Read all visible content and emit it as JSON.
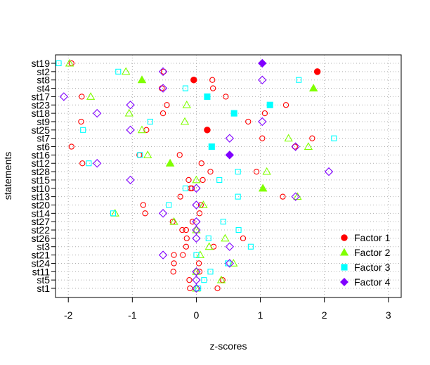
{
  "chart_data": {
    "type": "scatter",
    "xlabel": "z-scores",
    "ylabel": "statements",
    "xlim": [
      -2.2,
      3.2
    ],
    "xticks": [
      -2,
      -1,
      0,
      1,
      2,
      3
    ],
    "grid": true,
    "legend_position": "bottom-right",
    "categories": [
      "st19",
      "st2",
      "st8",
      "st4",
      "st17",
      "st23",
      "st18",
      "st9",
      "st25",
      "st7",
      "st6",
      "st16",
      "st12",
      "st28",
      "st15",
      "st10",
      "st13",
      "st20",
      "st14",
      "st27",
      "st22",
      "st26",
      "st3",
      "st21",
      "st24",
      "st11",
      "st5",
      "st1"
    ],
    "series": [
      {
        "name": "Factor 1",
        "color": "#ff0000",
        "marker": "circle",
        "values": [
          -1.95,
          -0.51,
          0.25,
          -0.54,
          -1.79,
          1.4,
          1.07,
          -1.8,
          0.17,
          1.81,
          -1.95,
          -0.89,
          -1.78,
          0.94,
          -0.12,
          -0.09,
          1.35,
          -0.83,
          -0.8,
          -0.37,
          -0.16,
          0.73,
          0.27,
          -0.35,
          0.04,
          -0.36,
          0.41,
          0.33
        ],
        "alt_values": [
          1.03,
          1.89,
          -0.04,
          0.26,
          0.46,
          -0.46,
          -0.52,
          0.81,
          -0.78,
          1.03,
          1.54,
          -0.26,
          0.08,
          0.22,
          0.1,
          -0.07,
          -0.25,
          0.07,
          0.05,
          -0.06,
          -0.22,
          -0.15,
          -0.16,
          -0.21,
          -0.35,
          0.05,
          -0.11,
          -0.1
        ]
      },
      {
        "name": "Factor 2",
        "color": "#80ff00",
        "marker": "triangle",
        "values": [
          -1.98,
          -1.1,
          -0.85,
          1.83,
          -1.65,
          -0.15,
          -1.05,
          -0.18,
          -0.85,
          1.44,
          1.75,
          -0.76,
          -0.41,
          1.1,
          0.0,
          1.04,
          1.58,
          0.11,
          -1.27,
          -0.35,
          0.0,
          0.45,
          0.2,
          0.06,
          0.58,
          0.0,
          0.39,
          0.0
        ]
      },
      {
        "name": "Factor 3",
        "color": "#00ffff",
        "marker": "square",
        "values": [
          -2.15,
          -1.22,
          1.6,
          -0.17,
          0.17,
          1.15,
          0.59,
          -0.72,
          -1.77,
          2.15,
          0.24,
          -0.88,
          -1.68,
          0.65,
          0.36,
          -0.17,
          0.65,
          -0.43,
          -1.3,
          0.42,
          0.66,
          0.19,
          0.85,
          0.0,
          0.49,
          0.22,
          0.12,
          0.03
        ]
      },
      {
        "name": "Factor 4",
        "color": "#8000ff",
        "marker": "diamond",
        "values": [
          1.03,
          -0.52,
          1.03,
          -0.52,
          -2.07,
          -1.03,
          -1.55,
          1.03,
          -1.03,
          0.52,
          1.55,
          0.52,
          -1.55,
          2.07,
          -1.03,
          0.0,
          1.55,
          0.0,
          -0.52,
          0.0,
          0.0,
          0.0,
          0.52,
          -0.52,
          0.52,
          0.0,
          0.0,
          0.0
        ]
      }
    ]
  }
}
